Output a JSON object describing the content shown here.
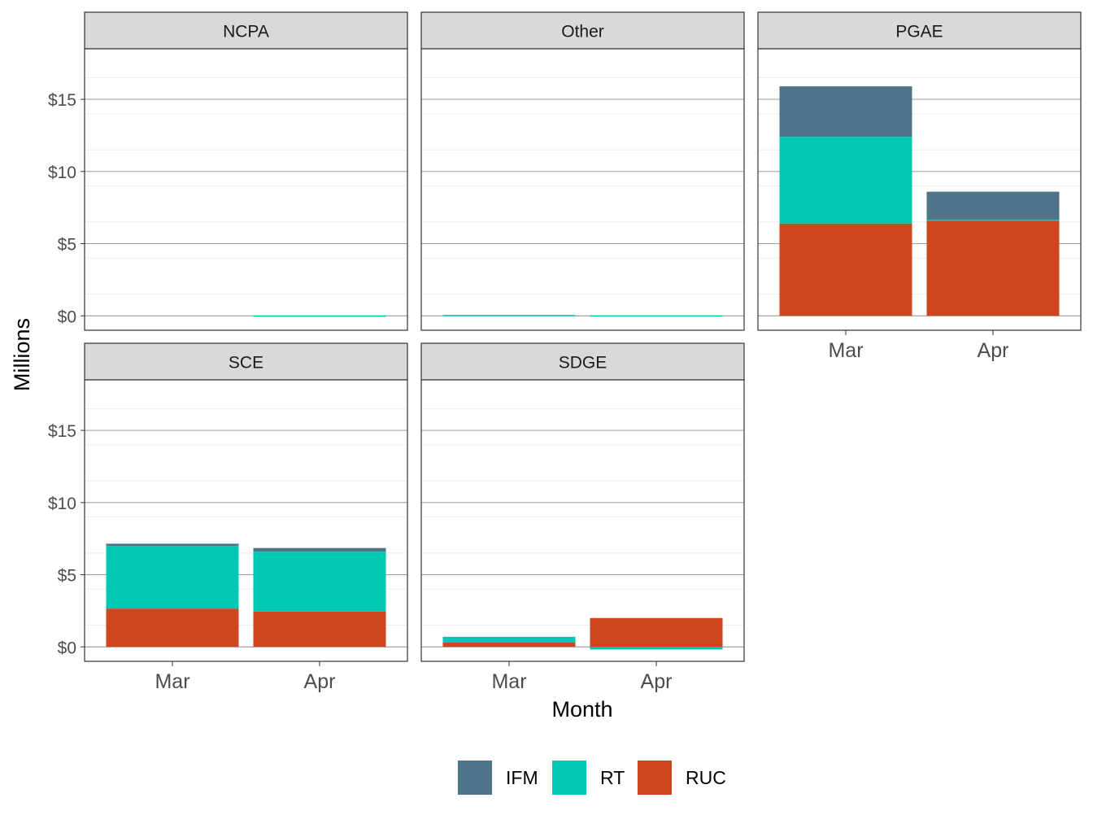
{
  "chart_data": {
    "type": "bar",
    "stacked": true,
    "xlabel": "Month",
    "ylabel": "Millions",
    "categories": [
      "Mar",
      "Apr"
    ],
    "ylim": [
      -1.0,
      18.5
    ],
    "yticks": [
      0,
      5,
      10,
      15
    ],
    "ytick_labels": [
      "$0",
      "$5",
      "$10",
      "$15"
    ],
    "grid": true,
    "legend_position": "bottom",
    "series_colors": {
      "IFM": "#4f7489",
      "RT": "#00c7b1",
      "RUC": "#cf4520"
    },
    "legend": [
      {
        "name": "IFM",
        "color": "#4f7489"
      },
      {
        "name": "RT",
        "color": "#00c7b1"
      },
      {
        "name": "RUC",
        "color": "#cf4520"
      }
    ],
    "panels": [
      {
        "name": "NCPA",
        "series": [
          {
            "name": "IFM",
            "values": [
              0,
              0
            ]
          },
          {
            "name": "RT",
            "values": [
              0,
              0.02
            ]
          },
          {
            "name": "RUC",
            "values": [
              0,
              0
            ]
          }
        ]
      },
      {
        "name": "Other",
        "series": [
          {
            "name": "IFM",
            "values": [
              0,
              0
            ]
          },
          {
            "name": "RT",
            "values": [
              0.06,
              0.03
            ]
          },
          {
            "name": "RUC",
            "values": [
              0,
              0
            ]
          }
        ]
      },
      {
        "name": "PGAE",
        "series": [
          {
            "name": "IFM",
            "values": [
              3.5,
              1.95
            ]
          },
          {
            "name": "RT",
            "values": [
              6.0,
              0.05
            ]
          },
          {
            "name": "RUC",
            "values": [
              6.4,
              6.6
            ]
          }
        ]
      },
      {
        "name": "SCE",
        "series": [
          {
            "name": "IFM",
            "values": [
              0.15,
              0.25
            ]
          },
          {
            "name": "RT",
            "values": [
              4.35,
              4.15
            ]
          },
          {
            "name": "RUC",
            "values": [
              2.65,
              2.45
            ]
          }
        ]
      },
      {
        "name": "SDGE",
        "series": [
          {
            "name": "IFM",
            "values": [
              0,
              0
            ]
          },
          {
            "name": "RT",
            "values": [
              0.4,
              -0.18
            ]
          },
          {
            "name": "RUC",
            "values": [
              0.3,
              2.0
            ]
          }
        ]
      }
    ]
  }
}
